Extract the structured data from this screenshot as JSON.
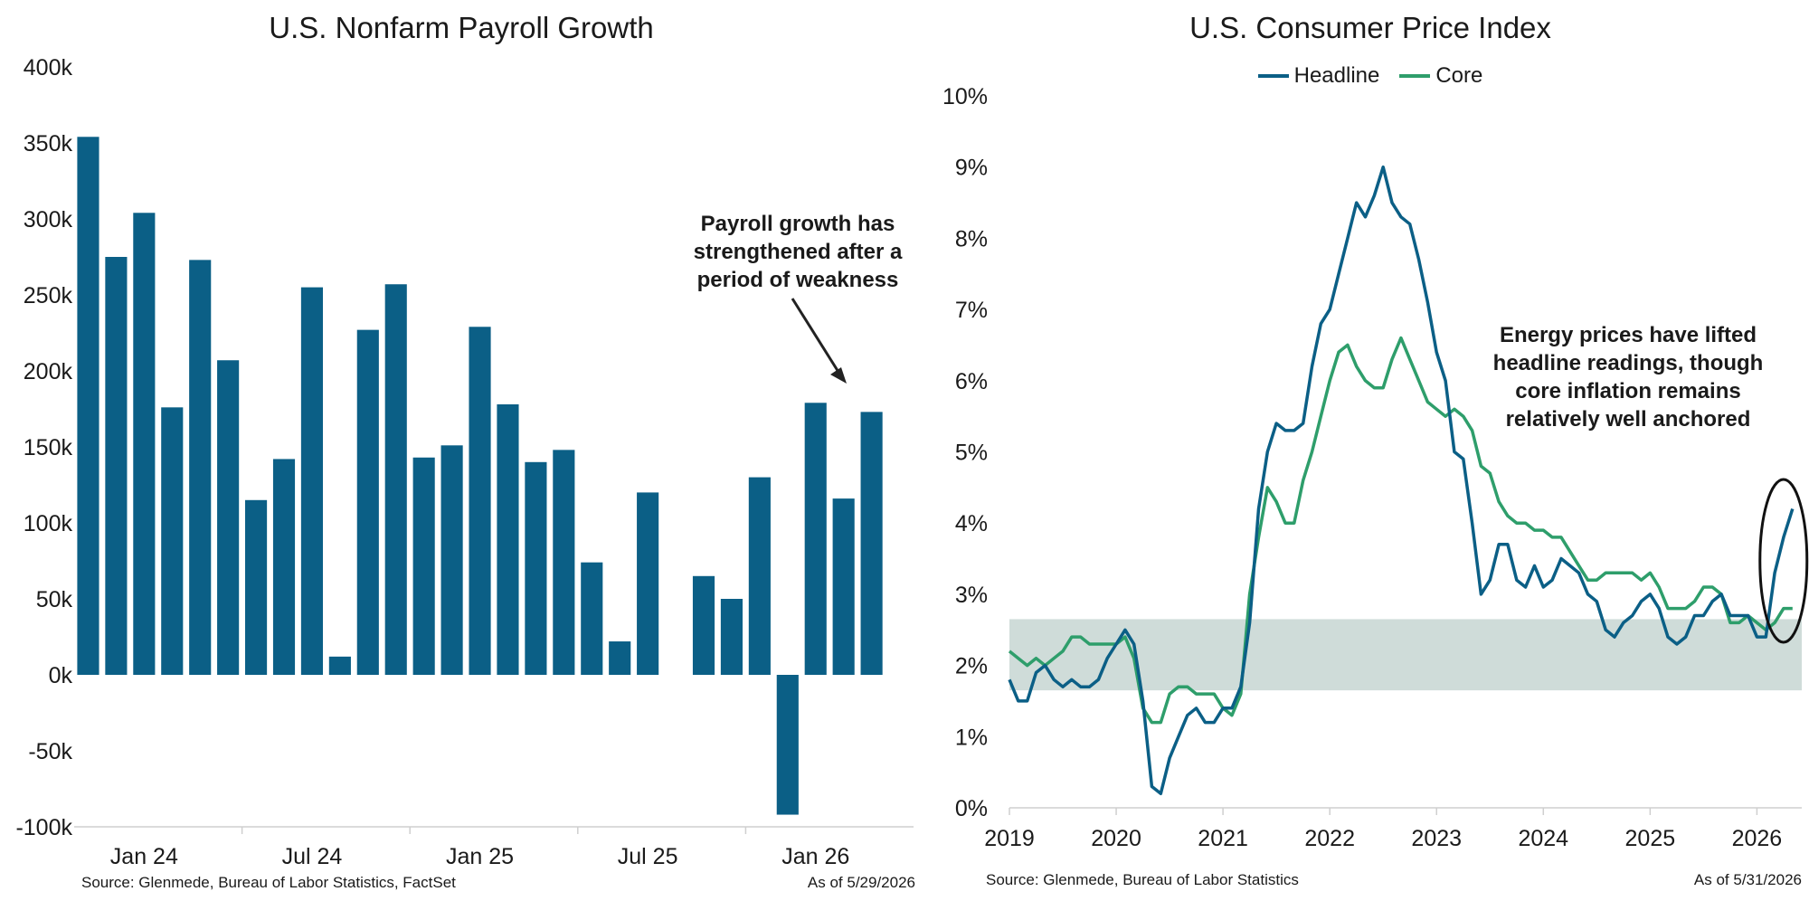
{
  "chart_data": [
    {
      "type": "bar",
      "title": "U.S. Nonfarm Payroll Growth",
      "xlabel": "",
      "ylabel": "",
      "ylim": [
        -100,
        400
      ],
      "y_ticks": [
        "400k",
        "350k",
        "300k",
        "250k",
        "200k",
        "150k",
        "100k",
        "50k",
        "0k",
        "-50k",
        "-100k"
      ],
      "y_tick_values": [
        400,
        350,
        300,
        250,
        200,
        150,
        100,
        50,
        0,
        -50,
        -100
      ],
      "x_tick_labels": [
        "Jan 24",
        "Jul 24",
        "Jan 25",
        "Jul 25",
        "Jan 26"
      ],
      "x_tick_index": [
        2,
        8,
        14,
        20,
        26
      ],
      "categories": [
        "Nov 23",
        "Dec 23",
        "Jan 24",
        "Feb 24",
        "Mar 24",
        "Apr 24",
        "May 24",
        "Jun 24",
        "Jul 24",
        "Aug 24",
        "Sep 24",
        "Oct 24",
        "Nov 24",
        "Dec 24",
        "Jan 25",
        "Feb 25",
        "Mar 25",
        "Apr 25",
        "May 25",
        "Jun 25",
        "Jul 25",
        "Aug 25",
        "Sep 25",
        "Oct 25",
        "Nov 25",
        "Dec 25",
        "Jan 26",
        "Feb 26",
        "Mar 26",
        "Apr 26"
      ],
      "values": [
        354,
        275,
        304,
        176,
        273,
        207,
        115,
        142,
        255,
        12,
        227,
        257,
        143,
        151,
        229,
        178,
        140,
        148,
        74,
        22,
        120,
        null,
        65,
        50,
        130,
        -92,
        179,
        116,
        173,
        null
      ],
      "series_color": "#0b5f86",
      "annotation": "Payroll growth has strengthened after a period of weakness",
      "source": "Source: Glenmede, Bureau of Labor Statistics, FactSet",
      "as_of": "As of 5/29/2026"
    },
    {
      "type": "line",
      "title": "U.S. Consumer Price Index",
      "xlabel": "",
      "ylabel": "",
      "ylim": [
        0,
        10
      ],
      "xlim": [
        2019.0,
        2026.42
      ],
      "y_ticks": [
        "10%",
        "9%",
        "8%",
        "7%",
        "6%",
        "5%",
        "4%",
        "3%",
        "2%",
        "1%",
        "0%"
      ],
      "y_tick_values": [
        10,
        9,
        8,
        7,
        6,
        5,
        4,
        3,
        2,
        1,
        0
      ],
      "x_ticks": [
        "2019",
        "2020",
        "2021",
        "2022",
        "2023",
        "2024",
        "2025",
        "2026"
      ],
      "x_tick_values": [
        2019,
        2020,
        2021,
        2022,
        2023,
        2024,
        2025,
        2026
      ],
      "shaded_band": {
        "from": 1.65,
        "to": 2.65,
        "color": "#cfdcd9"
      },
      "x_start": 2019.0,
      "x_step_months": 1,
      "legend_position": "top-center",
      "series": [
        {
          "name": "Headline",
          "color": "#0b5f86",
          "values": [
            1.8,
            1.5,
            1.5,
            1.9,
            2.0,
            1.8,
            1.7,
            1.8,
            1.7,
            1.7,
            1.8,
            2.1,
            2.3,
            2.5,
            2.3,
            1.5,
            0.3,
            0.2,
            0.7,
            1.0,
            1.3,
            1.4,
            1.2,
            1.2,
            1.4,
            1.4,
            1.7,
            2.6,
            4.2,
            5.0,
            5.4,
            5.3,
            5.3,
            5.4,
            6.2,
            6.8,
            7.0,
            7.5,
            8.0,
            8.5,
            8.3,
            8.6,
            9.0,
            8.5,
            8.3,
            8.2,
            7.7,
            7.1,
            6.4,
            6.0,
            5.0,
            4.9,
            4.0,
            3.0,
            3.2,
            3.7,
            3.7,
            3.2,
            3.1,
            3.4,
            3.1,
            3.2,
            3.5,
            3.4,
            3.3,
            3.0,
            2.9,
            2.5,
            2.4,
            2.6,
            2.7,
            2.9,
            3.0,
            2.8,
            2.4,
            2.3,
            2.4,
            2.7,
            2.7,
            2.9,
            3.0,
            2.7,
            2.7,
            2.7,
            2.4,
            2.4,
            3.3,
            3.8,
            4.2
          ]
        },
        {
          "name": "Core",
          "color": "#2e9e6b",
          "values": [
            2.2,
            2.1,
            2.0,
            2.1,
            2.0,
            2.1,
            2.2,
            2.4,
            2.4,
            2.3,
            2.3,
            2.3,
            2.3,
            2.4,
            2.1,
            1.4,
            1.2,
            1.2,
            1.6,
            1.7,
            1.7,
            1.6,
            1.6,
            1.6,
            1.4,
            1.3,
            1.6,
            3.0,
            3.8,
            4.5,
            4.3,
            4.0,
            4.0,
            4.6,
            5.0,
            5.5,
            6.0,
            6.4,
            6.5,
            6.2,
            6.0,
            5.9,
            5.9,
            6.3,
            6.6,
            6.3,
            6.0,
            5.7,
            5.6,
            5.5,
            5.6,
            5.5,
            5.3,
            4.8,
            4.7,
            4.3,
            4.1,
            4.0,
            4.0,
            3.9,
            3.9,
            3.8,
            3.8,
            3.6,
            3.4,
            3.2,
            3.2,
            3.3,
            3.3,
            3.3,
            3.3,
            3.2,
            3.3,
            3.1,
            2.8,
            2.8,
            2.8,
            2.9,
            3.1,
            3.1,
            3.0,
            2.6,
            2.6,
            2.7,
            2.6,
            2.5,
            2.6,
            2.8,
            2.8
          ]
        }
      ],
      "annotation": "Energy prices have lifted headline readings, though core inflation remains relatively well anchored",
      "source": "Source: Glenmede, Bureau of Labor Statistics",
      "as_of": "As of 5/31/2026"
    }
  ]
}
